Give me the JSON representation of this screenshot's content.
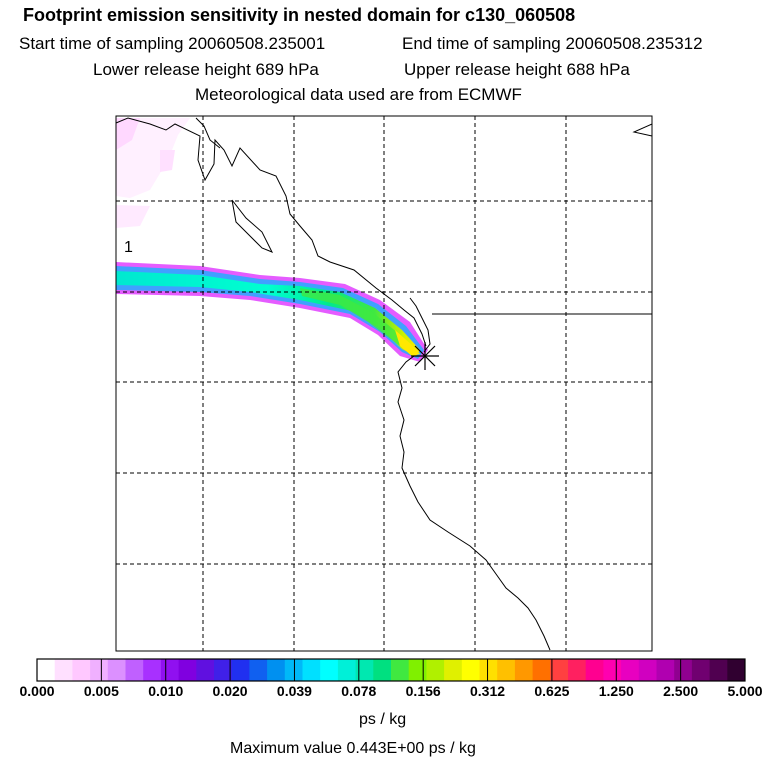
{
  "header": {
    "title": "Footprint emission sensitivity in nested domain for c130_060508",
    "start_time": "Start time of sampling 20060508.235001",
    "end_time": "End time of sampling 20060508.235312",
    "lower_release": "Lower release height  689 hPa",
    "upper_release": "Upper release height  688 hPa",
    "met_data": "Meteorological data used are from ECMWF"
  },
  "map": {
    "plume_label": "1",
    "gridlines": "dashed",
    "release_marker": "asterisk"
  },
  "legend": {
    "ticks": [
      "0.000",
      "0.005",
      "0.010",
      "0.020",
      "0.039",
      "0.078",
      "0.156",
      "0.312",
      "0.625",
      "1.250",
      "2.500",
      "5.000"
    ],
    "colors": [
      "#ffffff",
      "#ffe0ff",
      "#ffc8ff",
      "#f0b0ff",
      "#dc90ff",
      "#c060ff",
      "#a830ff",
      "#9010f0",
      "#8000e0",
      "#6010e0",
      "#4020e8",
      "#2030f0",
      "#1060f0",
      "#0090f0",
      "#00b8f8",
      "#00e0ff",
      "#00ffff",
      "#00f0d8",
      "#00e8b0",
      "#00e080",
      "#40e840",
      "#80f000",
      "#b0f000",
      "#e0f000",
      "#ffff00",
      "#ffe000",
      "#ffc000",
      "#ff9800",
      "#ff7000",
      "#ff4040",
      "#ff2060",
      "#ff0090",
      "#ff00b0",
      "#e800c0",
      "#d000c0",
      "#b000b0",
      "#900090",
      "#700070",
      "#500050",
      "#300030"
    ],
    "unit": "ps / kg",
    "max_value": "Maximum value  0.443E+00 ps / kg"
  }
}
